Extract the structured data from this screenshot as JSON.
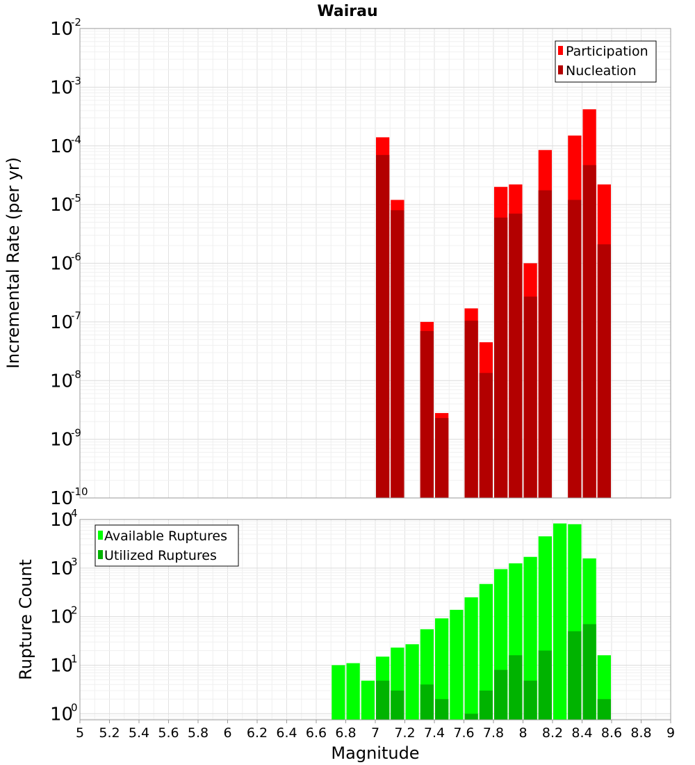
{
  "chart_data": [
    {
      "id": "rates",
      "type": "bar",
      "title": "Wairau",
      "xlabel": "",
      "ylabel": "Incremental Rate (per yr)",
      "yscale": "log",
      "xlim": [
        5,
        9
      ],
      "ylim": [
        1e-10,
        0.01
      ],
      "y_tick_exponents": [
        "-10",
        "-9",
        "-8",
        "-7",
        "-6",
        "-5",
        "-4",
        "-3",
        "-2"
      ],
      "y_tick_base": "10",
      "grid": true,
      "legend_position": "top-right",
      "bar_width": 0.1,
      "series": [
        {
          "name": "Participation",
          "color": "#ff0000",
          "x": [
            7.05,
            7.15,
            7.35,
            7.45,
            7.65,
            7.75,
            7.85,
            7.95,
            8.05,
            8.15,
            8.35,
            8.45,
            8.55
          ],
          "values": [
            0.00014,
            1.2e-05,
            1e-07,
            2.8e-09,
            1.7e-07,
            4.5e-08,
            2e-05,
            2.2e-05,
            1e-06,
            8.5e-05,
            0.00015,
            0.00042,
            2.2e-05
          ]
        },
        {
          "name": "Nucleation",
          "color": "#b30000",
          "x": [
            7.05,
            7.15,
            7.35,
            7.45,
            7.65,
            7.75,
            7.85,
            7.95,
            8.05,
            8.15,
            8.35,
            8.45,
            8.55
          ],
          "values": [
            7e-05,
            8e-06,
            7e-08,
            2.3e-09,
            1.05e-07,
            1.35e-08,
            6e-06,
            7e-06,
            2.7e-07,
            1.75e-05,
            1.2e-05,
            4.7e-05,
            2.1e-06
          ]
        }
      ]
    },
    {
      "id": "counts",
      "type": "bar",
      "title": "",
      "xlabel": "Magnitude",
      "ylabel": "Rupture Count",
      "yscale": "log",
      "xlim": [
        5,
        9
      ],
      "ylim": [
        0.75,
        10000
      ],
      "x_ticks": [
        "5",
        "5.2",
        "5.4",
        "5.6",
        "5.8",
        "6",
        "6.2",
        "6.4",
        "6.6",
        "6.8",
        "7",
        "7.2",
        "7.4",
        "7.6",
        "7.8",
        "8",
        "8.2",
        "8.4",
        "8.6",
        "8.8",
        "9"
      ],
      "y_tick_exponents": [
        "0",
        "1",
        "2",
        "3",
        "4"
      ],
      "y_tick_base": "10",
      "grid": true,
      "legend_position": "top-left",
      "bar_width": 0.1,
      "series": [
        {
          "name": "Available Ruptures",
          "color": "#00ff00",
          "x": [
            6.75,
            6.85,
            6.95,
            7.05,
            7.15,
            7.25,
            7.35,
            7.45,
            7.55,
            7.65,
            7.75,
            7.85,
            7.95,
            8.05,
            8.15,
            8.25,
            8.35,
            8.45,
            8.55
          ],
          "values": [
            10,
            11,
            4.8,
            15,
            23,
            27,
            55,
            92,
            138,
            250,
            470,
            950,
            1250,
            1700,
            4500,
            8300,
            8000,
            1580,
            16
          ]
        },
        {
          "name": "Utilized Ruptures",
          "color": "#00b300",
          "x": [
            7.05,
            7.15,
            7.35,
            7.45,
            7.65,
            7.75,
            7.85,
            7.95,
            8.05,
            8.15,
            8.35,
            8.45,
            8.55
          ],
          "values": [
            4.8,
            3.0,
            4.0,
            2.0,
            1.0,
            3.0,
            8.0,
            16,
            4.8,
            20,
            50,
            70,
            2.0
          ]
        }
      ]
    }
  ]
}
